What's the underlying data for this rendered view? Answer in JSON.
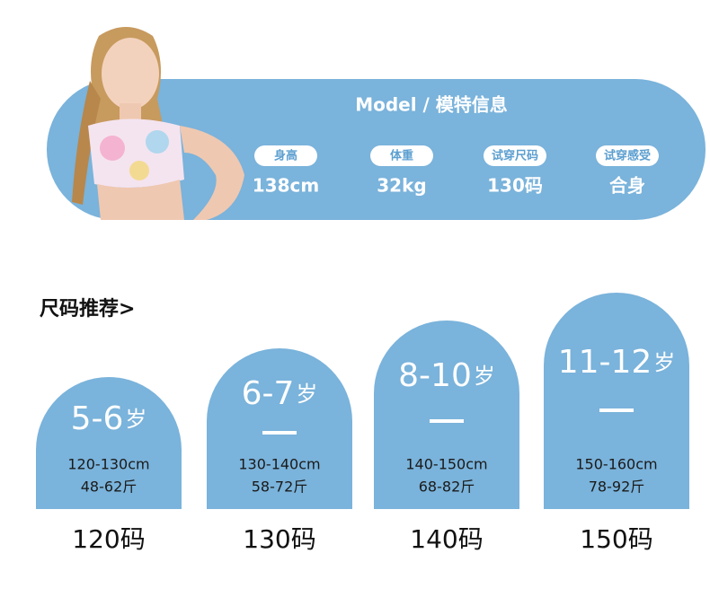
{
  "model": {
    "title": "Model / 模特信息",
    "stats": [
      {
        "label": "身高",
        "value": "138cm"
      },
      {
        "label": "体重",
        "value": "32kg"
      },
      {
        "label": "试穿尺码",
        "value": "130码"
      },
      {
        "label": "试穿感受",
        "value": "合身"
      }
    ]
  },
  "recommend": {
    "heading": "尺码推荐>",
    "cards": [
      {
        "age": "5-6",
        "unit": "岁",
        "height": "120-130cm",
        "weight": "48-62斤",
        "size": "120码"
      },
      {
        "age": "6-7",
        "unit": "岁",
        "height": "130-140cm",
        "weight": "58-72斤",
        "size": "130码"
      },
      {
        "age": "8-10",
        "unit": "岁",
        "height": "140-150cm",
        "weight": "68-82斤",
        "size": "140码"
      },
      {
        "age": "11-12",
        "unit": "岁",
        "height": "150-160cm",
        "weight": "78-92斤",
        "size": "150码"
      }
    ]
  }
}
